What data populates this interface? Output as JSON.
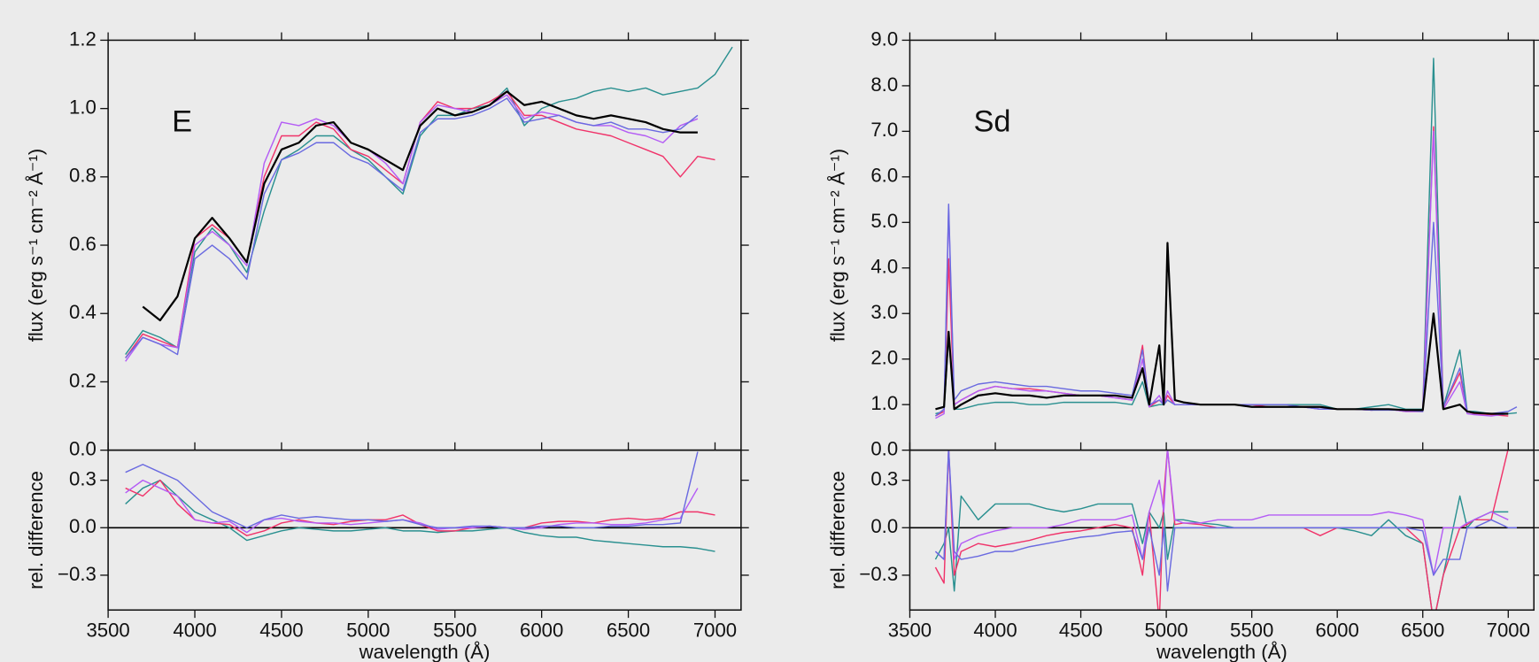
{
  "chart_data": [
    {
      "type": "line",
      "annotation": "E",
      "ylabel": "flux (erg s⁻¹ cm⁻² Å⁻¹)",
      "x": [
        3600,
        3700,
        3800,
        3900,
        4000,
        4100,
        4200,
        4300,
        4400,
        4500,
        4600,
        4700,
        4800,
        4900,
        5000,
        5100,
        5200,
        5300,
        5400,
        5500,
        5600,
        5700,
        5800,
        5900,
        6000,
        6100,
        6200,
        6300,
        6400,
        6500,
        6600,
        6700,
        6800,
        6900,
        7000,
        7100
      ],
      "series": [
        {
          "color": "#2a9090",
          "values": [
            0.28,
            0.35,
            0.33,
            0.3,
            0.58,
            0.65,
            0.6,
            0.52,
            0.7,
            0.85,
            0.88,
            0.92,
            0.92,
            0.88,
            0.85,
            0.8,
            0.75,
            0.92,
            0.98,
            0.98,
            1.0,
            1.01,
            1.06,
            0.95,
            1.0,
            1.02,
            1.03,
            1.05,
            1.06,
            1.05,
            1.06,
            1.04,
            1.05,
            1.06,
            1.1,
            1.18
          ]
        },
        {
          "color": "#f0336a",
          "values": [
            0.27,
            0.34,
            0.32,
            0.3,
            0.62,
            0.66,
            0.62,
            0.55,
            0.8,
            0.92,
            0.92,
            0.96,
            0.94,
            0.88,
            0.86,
            0.82,
            0.78,
            0.96,
            1.02,
            1.0,
            1.0,
            1.02,
            1.05,
            0.98,
            0.98,
            0.96,
            0.94,
            0.93,
            0.92,
            0.9,
            0.88,
            0.86,
            0.8,
            0.86,
            0.85,
            null
          ]
        },
        {
          "color": "#b45cf5",
          "values": [
            0.26,
            0.33,
            0.31,
            0.3,
            0.6,
            0.64,
            0.6,
            0.54,
            0.84,
            0.96,
            0.95,
            0.97,
            0.95,
            0.9,
            0.88,
            0.84,
            0.78,
            0.96,
            1.01,
            1.0,
            0.99,
            1.01,
            1.04,
            0.97,
            0.99,
            0.98,
            0.96,
            0.95,
            0.95,
            0.93,
            0.92,
            0.9,
            0.95,
            0.97,
            null,
            null
          ]
        },
        {
          "color": "#6a6ae0",
          "values": [
            0.27,
            0.33,
            0.31,
            0.28,
            0.56,
            0.6,
            0.56,
            0.5,
            0.75,
            0.85,
            0.87,
            0.9,
            0.9,
            0.86,
            0.84,
            0.8,
            0.76,
            0.93,
            0.97,
            0.97,
            0.98,
            1.0,
            1.03,
            0.96,
            0.97,
            0.98,
            0.96,
            0.95,
            0.96,
            0.94,
            0.94,
            0.93,
            0.94,
            0.98,
            null,
            null
          ]
        },
        {
          "color": "#000000",
          "values": [
            null,
            0.42,
            0.38,
            0.45,
            0.62,
            0.68,
            0.62,
            0.55,
            0.78,
            0.88,
            0.9,
            0.95,
            0.96,
            0.9,
            0.88,
            0.85,
            0.82,
            0.95,
            1.0,
            0.98,
            0.99,
            1.01,
            1.05,
            1.01,
            1.02,
            1.0,
            0.98,
            0.97,
            0.98,
            0.97,
            0.96,
            0.94,
            0.93,
            0.93,
            null,
            null
          ]
        }
      ],
      "xlim": [
        3500,
        7150
      ],
      "ylim": [
        0,
        1.2
      ],
      "yticks": [
        {
          "value": 0,
          "label": "0.0"
        },
        0.2,
        0.4,
        0.6,
        0.8,
        {
          "value": 1,
          "label": "1.0"
        },
        1.2
      ]
    },
    {
      "type": "line",
      "ylabel": "rel. difference",
      "xlabel": "wavelength (Å)",
      "x": [
        3600,
        3700,
        3800,
        3900,
        4000,
        4100,
        4200,
        4300,
        4400,
        4500,
        4600,
        4700,
        4800,
        4900,
        5000,
        5100,
        5200,
        5300,
        5400,
        5500,
        5600,
        5700,
        5800,
        5900,
        6000,
        6100,
        6200,
        6300,
        6400,
        6500,
        6600,
        6700,
        6800,
        6900,
        7000,
        7100
      ],
      "series": [
        {
          "color": "#2a9090",
          "values": [
            0.15,
            0.25,
            0.3,
            0.2,
            0.1,
            0.05,
            0.0,
            -0.08,
            -0.05,
            -0.02,
            0.0,
            -0.01,
            -0.02,
            -0.02,
            -0.01,
            0.0,
            -0.02,
            -0.02,
            -0.03,
            -0.02,
            -0.02,
            -0.01,
            0.0,
            -0.03,
            -0.05,
            -0.06,
            -0.06,
            -0.08,
            -0.09,
            -0.1,
            -0.11,
            -0.12,
            -0.12,
            -0.13,
            -0.15,
            null
          ]
        },
        {
          "color": "#f0336a",
          "values": [
            0.25,
            0.2,
            0.3,
            0.15,
            0.05,
            0.03,
            0.02,
            -0.05,
            -0.02,
            0.03,
            0.05,
            0.03,
            0.02,
            0.04,
            0.05,
            0.05,
            0.08,
            0.02,
            -0.02,
            -0.02,
            0.0,
            0.01,
            0.0,
            0.0,
            0.03,
            0.04,
            0.04,
            0.03,
            0.05,
            0.06,
            0.05,
            0.06,
            0.1,
            0.1,
            0.08,
            null
          ]
        },
        {
          "color": "#b45cf5",
          "values": [
            0.22,
            0.3,
            0.25,
            0.2,
            0.05,
            0.03,
            0.04,
            -0.03,
            0.05,
            0.06,
            0.04,
            0.03,
            0.03,
            0.02,
            0.03,
            0.04,
            0.05,
            0.03,
            -0.01,
            0.0,
            0.0,
            0.01,
            0.0,
            -0.01,
            0.0,
            0.02,
            0.03,
            0.03,
            0.02,
            0.02,
            0.03,
            0.05,
            0.06,
            0.25,
            null,
            null
          ]
        },
        {
          "color": "#6a6ae0",
          "values": [
            0.35,
            0.4,
            0.35,
            0.3,
            0.2,
            0.1,
            0.05,
            0.0,
            0.05,
            0.08,
            0.06,
            0.07,
            0.06,
            0.05,
            0.05,
            0.04,
            0.05,
            0.02,
            0.0,
            0.0,
            0.01,
            0.01,
            0.0,
            0.0,
            0.01,
            0.01,
            0.0,
            0.0,
            0.01,
            0.01,
            0.02,
            0.02,
            0.03,
            0.48,
            null,
            null
          ]
        }
      ],
      "xlim": [
        3500,
        7150
      ],
      "ylim": [
        -0.52,
        0.49
      ],
      "xticks": [
        3500,
        4000,
        4500,
        5000,
        5500,
        6000,
        6500,
        7000
      ],
      "yticks": [
        {
          "value": -0.3,
          "label": "−0.3"
        },
        {
          "value": 0,
          "label": "0.0"
        },
        0.3
      ]
    },
    {
      "type": "line",
      "annotation": "Sd",
      "ylabel": "flux (erg s⁻¹ cm⁻² Å⁻¹)",
      "x": [
        3650,
        3700,
        3727,
        3760,
        3800,
        3900,
        4000,
        4100,
        4200,
        4300,
        4400,
        4500,
        4600,
        4700,
        4800,
        4861,
        4900,
        4959,
        4985,
        5007,
        5050,
        5100,
        5200,
        5300,
        5400,
        5500,
        5600,
        5700,
        5800,
        5900,
        6000,
        6100,
        6200,
        6300,
        6400,
        6500,
        6563,
        6620,
        6717,
        6760,
        6800,
        6900,
        7000,
        7050
      ],
      "series": [
        {
          "color": "#2a9090",
          "values": [
            0.8,
            0.85,
            2.5,
            0.9,
            0.9,
            1.0,
            1.05,
            1.05,
            1.0,
            1.0,
            1.05,
            1.05,
            1.05,
            1.05,
            1.0,
            1.5,
            0.95,
            1.0,
            1.0,
            1.1,
            1.0,
            1.0,
            1.0,
            1.0,
            1.0,
            1.0,
            1.0,
            1.0,
            1.0,
            1.0,
            0.9,
            0.9,
            0.95,
            1.0,
            0.9,
            0.9,
            8.6,
            0.95,
            2.2,
            0.85,
            0.85,
            0.8,
            0.8,
            0.82
          ]
        },
        {
          "color": "#f0336a",
          "values": [
            0.75,
            0.85,
            4.2,
            1.0,
            1.1,
            1.3,
            1.4,
            1.35,
            1.35,
            1.3,
            1.25,
            1.2,
            1.2,
            1.15,
            1.1,
            2.3,
            0.95,
            1.1,
            1.0,
            1.2,
            1.0,
            1.0,
            1.0,
            1.0,
            1.0,
            1.0,
            0.95,
            0.95,
            0.95,
            0.9,
            0.9,
            0.9,
            0.88,
            0.9,
            0.85,
            0.85,
            7.1,
            0.95,
            1.7,
            0.85,
            0.8,
            0.78,
            0.75,
            null
          ]
        },
        {
          "color": "#b45cf5",
          "values": [
            0.7,
            0.8,
            5.3,
            1.0,
            1.1,
            1.3,
            1.4,
            1.35,
            1.3,
            1.3,
            1.25,
            1.2,
            1.2,
            1.15,
            1.1,
            2.0,
            0.95,
            1.2,
            1.0,
            1.3,
            1.0,
            1.0,
            1.0,
            1.0,
            1.0,
            0.95,
            0.95,
            0.95,
            0.95,
            0.9,
            0.9,
            0.9,
            0.88,
            0.9,
            0.85,
            0.85,
            7.0,
            0.9,
            1.5,
            0.8,
            0.78,
            0.75,
            0.8,
            null
          ]
        },
        {
          "color": "#6a6ae0",
          "values": [
            0.75,
            0.9,
            5.4,
            1.1,
            1.3,
            1.45,
            1.5,
            1.45,
            1.4,
            1.4,
            1.35,
            1.3,
            1.3,
            1.25,
            1.2,
            2.2,
            1.0,
            1.1,
            1.0,
            1.1,
            1.0,
            1.0,
            1.0,
            1.0,
            1.0,
            1.0,
            1.0,
            1.0,
            0.95,
            0.9,
            0.9,
            0.9,
            0.88,
            0.88,
            0.88,
            0.85,
            5.0,
            0.95,
            1.8,
            0.85,
            0.82,
            0.8,
            0.85,
            0.95
          ]
        },
        {
          "color": "#000000",
          "values": [
            0.9,
            0.95,
            2.6,
            0.9,
            1.0,
            1.2,
            1.25,
            1.2,
            1.2,
            1.15,
            1.2,
            1.2,
            1.2,
            1.2,
            1.15,
            1.8,
            1.0,
            2.3,
            1.0,
            4.55,
            1.1,
            1.05,
            1.0,
            1.0,
            1.0,
            0.95,
            0.95,
            0.95,
            0.95,
            0.95,
            0.9,
            0.9,
            0.9,
            0.9,
            0.88,
            0.88,
            3.0,
            0.9,
            1.0,
            0.85,
            0.82,
            0.8,
            0.8,
            null
          ]
        }
      ],
      "xlim": [
        3500,
        7150
      ],
      "ylim": [
        0,
        9
      ],
      "yticks": [
        {
          "value": 0,
          "label": "0.0"
        },
        {
          "value": 1,
          "label": "1.0"
        },
        {
          "value": 2,
          "label": "2.0"
        },
        {
          "value": 3,
          "label": "3.0"
        },
        {
          "value": 4,
          "label": "4.0"
        },
        {
          "value": 5,
          "label": "5.0"
        },
        {
          "value": 6,
          "label": "6.0"
        },
        {
          "value": 7,
          "label": "7.0"
        },
        {
          "value": 8,
          "label": "8.0"
        },
        {
          "value": 9,
          "label": "9.0"
        }
      ]
    },
    {
      "type": "line",
      "ylabel": "rel. difference",
      "xlabel": "wavelength (Å)",
      "x": [
        3650,
        3700,
        3727,
        3760,
        3800,
        3900,
        4000,
        4100,
        4200,
        4300,
        4400,
        4500,
        4600,
        4700,
        4800,
        4861,
        4900,
        4959,
        4985,
        5007,
        5050,
        5100,
        5200,
        5300,
        5400,
        5500,
        5600,
        5700,
        5800,
        5900,
        6000,
        6100,
        6200,
        6300,
        6400,
        6500,
        6563,
        6620,
        6717,
        6760,
        6800,
        6900,
        7000,
        7050
      ],
      "series": [
        {
          "color": "#2a9090",
          "values": [
            -0.2,
            -0.1,
            0.0,
            -0.4,
            0.2,
            0.05,
            0.15,
            0.15,
            0.15,
            0.12,
            0.1,
            0.12,
            0.15,
            0.15,
            0.15,
            -0.1,
            0.1,
            0.0,
            0.1,
            -0.2,
            0.05,
            0.05,
            0.03,
            0.02,
            0.0,
            0.0,
            0.0,
            0.0,
            0.0,
            0.0,
            0.0,
            -0.02,
            -0.05,
            0.05,
            -0.05,
            -0.1,
            -0.6,
            -0.3,
            0.2,
            0.0,
            0.05,
            0.1,
            0.1,
            null
          ]
        },
        {
          "color": "#f0336a",
          "values": [
            -0.25,
            -0.35,
            0.5,
            -0.3,
            -0.15,
            -0.1,
            -0.12,
            -0.1,
            -0.08,
            -0.05,
            -0.03,
            -0.02,
            0.0,
            0.02,
            0.0,
            -0.3,
            0.1,
            -0.6,
            0.2,
            0.5,
            0.02,
            0.03,
            0.02,
            0.0,
            0.0,
            0.0,
            0.0,
            0.0,
            0.0,
            -0.05,
            0.0,
            0.0,
            0.0,
            0.0,
            0.0,
            -0.1,
            -0.6,
            -0.3,
            0.0,
            0.02,
            0.05,
            0.05,
            0.5,
            null
          ]
        },
        {
          "color": "#b45cf5",
          "values": [
            -0.15,
            -0.2,
            0.5,
            -0.2,
            -0.1,
            -0.05,
            -0.02,
            0.0,
            0.0,
            0.0,
            0.02,
            0.05,
            0.05,
            0.05,
            0.08,
            -0.2,
            0.1,
            0.3,
            0.1,
            0.5,
            0.05,
            0.03,
            0.03,
            0.05,
            0.05,
            0.05,
            0.08,
            0.08,
            0.08,
            0.08,
            0.08,
            0.08,
            0.08,
            0.1,
            0.08,
            0.05,
            -0.3,
            0.0,
            0.0,
            0.03,
            0.05,
            0.1,
            0.05,
            null
          ]
        },
        {
          "color": "#6a6ae0",
          "values": [
            -0.15,
            -0.2,
            0.5,
            -0.15,
            -0.2,
            -0.18,
            -0.15,
            -0.15,
            -0.12,
            -0.1,
            -0.08,
            -0.06,
            -0.05,
            -0.03,
            -0.02,
            -0.2,
            0.0,
            -0.3,
            0.0,
            -0.4,
            0.0,
            0.0,
            0.0,
            0.0,
            0.0,
            0.0,
            0.0,
            0.0,
            0.0,
            0.0,
            0.0,
            0.0,
            0.0,
            0.0,
            0.0,
            -0.02,
            -0.3,
            -0.2,
            -0.2,
            0.0,
            0.0,
            0.05,
            0.0,
            0.0
          ]
        }
      ],
      "xlim": [
        3500,
        7150
      ],
      "ylim": [
        -0.52,
        0.49
      ],
      "xticks": [
        3500,
        4000,
        4500,
        5000,
        5500,
        6000,
        6500,
        7000
      ],
      "yticks": [
        {
          "value": -0.3,
          "label": "−0.3"
        },
        {
          "value": 0,
          "label": "0.0"
        },
        0.3
      ]
    }
  ]
}
